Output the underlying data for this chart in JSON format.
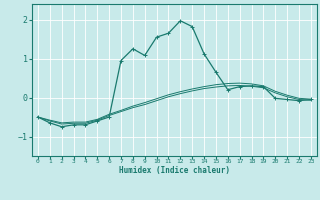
{
  "xlabel": "Humidex (Indice chaleur)",
  "background_color": "#c8eaea",
  "line_color": "#1a7a6e",
  "grid_color": "#ffffff",
  "xlim": [
    -0.5,
    23.5
  ],
  "ylim": [
    -1.5,
    2.4
  ],
  "yticks": [
    -1,
    0,
    1,
    2
  ],
  "xticks": [
    0,
    1,
    2,
    3,
    4,
    5,
    6,
    7,
    8,
    9,
    10,
    11,
    12,
    13,
    14,
    15,
    16,
    17,
    18,
    19,
    20,
    21,
    22,
    23
  ],
  "series1_x": [
    0,
    1,
    2,
    3,
    4,
    5,
    6,
    7,
    8,
    9,
    10,
    11,
    12,
    13,
    14,
    15,
    16,
    17,
    18,
    19,
    20,
    21,
    22,
    23
  ],
  "series1_y": [
    -0.5,
    -0.65,
    -0.75,
    -0.7,
    -0.7,
    -0.6,
    -0.5,
    0.95,
    1.25,
    1.08,
    1.55,
    1.65,
    1.97,
    1.82,
    1.12,
    0.65,
    0.2,
    0.28,
    0.3,
    0.28,
    -0.02,
    -0.05,
    -0.08,
    -0.05
  ],
  "series2_x": [
    0,
    1,
    2,
    3,
    4,
    5,
    6,
    7,
    8,
    9,
    10,
    11,
    12,
    13,
    14,
    15,
    16,
    17,
    18,
    19,
    20,
    21,
    22,
    23
  ],
  "series2_y": [
    -0.5,
    -0.58,
    -0.65,
    -0.63,
    -0.63,
    -0.56,
    -0.43,
    -0.33,
    -0.22,
    -0.13,
    -0.03,
    0.07,
    0.15,
    0.22,
    0.28,
    0.33,
    0.36,
    0.37,
    0.35,
    0.3,
    0.16,
    0.06,
    -0.02,
    -0.04
  ],
  "series3_x": [
    0,
    1,
    2,
    3,
    4,
    5,
    6,
    7,
    8,
    9,
    10,
    11,
    12,
    13,
    14,
    15,
    16,
    17,
    18,
    19,
    20,
    21,
    22,
    23
  ],
  "series3_y": [
    -0.5,
    -0.6,
    -0.68,
    -0.66,
    -0.66,
    -0.58,
    -0.46,
    -0.36,
    -0.26,
    -0.18,
    -0.08,
    0.02,
    0.1,
    0.17,
    0.23,
    0.27,
    0.3,
    0.31,
    0.29,
    0.25,
    0.12,
    0.02,
    -0.05,
    -0.07
  ]
}
